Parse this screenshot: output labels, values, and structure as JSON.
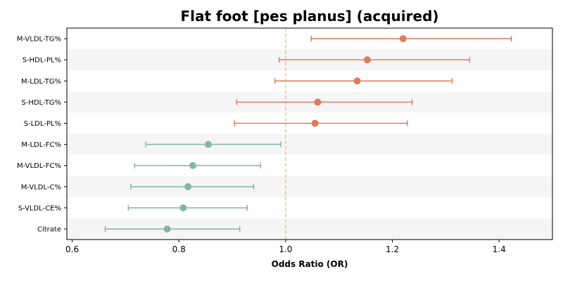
{
  "chart_data": {
    "type": "scatter",
    "title": "Flat foot [pes planus] (acquired)",
    "xlabel": "Odds Ratio (OR)",
    "ylabel": "",
    "xlim": [
      0.59,
      1.5
    ],
    "xticks": [
      "0.6",
      "0.8",
      "1.0",
      "1.2",
      "1.4"
    ],
    "xtick_values": [
      0.6,
      0.8,
      1.0,
      1.2,
      1.4
    ],
    "reference_line": 1.0,
    "grid": false,
    "colors": {
      "risk": "#E07B5A",
      "protective": "#86B59E",
      "reference_line": "#F2C57C",
      "band": "#F5F5F5"
    },
    "points": [
      {
        "label": "M-VLDL-TG%",
        "or": 1.22,
        "lower": 1.048,
        "upper": 1.423,
        "group": "risk"
      },
      {
        "label": "S-HDL-PL%",
        "or": 1.153,
        "lower": 0.988,
        "upper": 1.345,
        "group": "risk"
      },
      {
        "label": "M-LDL-TG%",
        "or": 1.134,
        "lower": 0.98,
        "upper": 1.312,
        "group": "risk"
      },
      {
        "label": "S-HDL-TG%",
        "or": 1.06,
        "lower": 0.908,
        "upper": 1.237,
        "group": "risk"
      },
      {
        "label": "S-LDL-PL%",
        "or": 1.055,
        "lower": 0.904,
        "upper": 1.228,
        "group": "risk"
      },
      {
        "label": "M-LDL-FC%",
        "or": 0.855,
        "lower": 0.738,
        "upper": 0.991,
        "group": "protective"
      },
      {
        "label": "M-VLDL-FC%",
        "or": 0.826,
        "lower": 0.717,
        "upper": 0.953,
        "group": "protective"
      },
      {
        "label": "M-VLDL-C%",
        "or": 0.817,
        "lower": 0.71,
        "upper": 0.94,
        "group": "protective"
      },
      {
        "label": "S-VLDL-CE%",
        "or": 0.808,
        "lower": 0.705,
        "upper": 0.928,
        "group": "protective"
      },
      {
        "label": "Citrate",
        "or": 0.778,
        "lower": 0.662,
        "upper": 0.914,
        "group": "protective"
      }
    ]
  }
}
